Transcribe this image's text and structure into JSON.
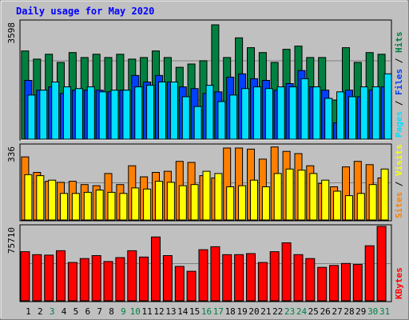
{
  "chart_data": {
    "type": "bar",
    "title": "Daily usage for May 2020",
    "categories": [
      "1",
      "2",
      "3",
      "4",
      "5",
      "6",
      "7",
      "8",
      "9",
      "10",
      "11",
      "12",
      "13",
      "14",
      "15",
      "16",
      "17",
      "18",
      "19",
      "20",
      "21",
      "22",
      "23",
      "24",
      "25",
      "26",
      "27",
      "28",
      "29",
      "30",
      "31"
    ],
    "weekend_days": [
      "3",
      "9",
      "10",
      "16",
      "17",
      "23",
      "24",
      "30",
      "31"
    ],
    "panels": [
      {
        "id": "hits-files-pages",
        "max_label": "3598",
        "ymax": 3598,
        "series": [
          {
            "name": "Hits",
            "color": "#008040",
            "values": [
              2700,
              2450,
              2600,
              2350,
              2650,
              2500,
              2600,
              2500,
              2600,
              2450,
              2500,
              2700,
              2500,
              2200,
              2300,
              2400,
              3500,
              2500,
              3100,
              2800,
              2650,
              2350,
              2750,
              2850,
              2500,
              2500,
              1200,
              2800,
              2350,
              2650,
              2600
            ]
          },
          {
            "name": "Files",
            "color": "#0040ff",
            "values": [
              1800,
              1500,
              1600,
              1400,
              1500,
              1500,
              1500,
              1450,
              1500,
              1950,
              1750,
              1950,
              1750,
              1600,
              1550,
              1400,
              1450,
              1900,
              2000,
              1850,
              1800,
              1500,
              1700,
              2100,
              1600,
              1500,
              500,
              1500,
              1300,
              1500,
              1600
            ]
          },
          {
            "name": "Pages",
            "color": "#00e0ff",
            "values": [
              1350,
              1500,
              1750,
              1600,
              1550,
              1600,
              1450,
              1500,
              1500,
              1600,
              1650,
              1750,
              1750,
              1300,
              1000,
              1650,
              1150,
              1350,
              1550,
              1600,
              1550,
              1600,
              1600,
              1850,
              1600,
              1250,
              1450,
              1300,
              1600,
              1600,
              2000
            ]
          }
        ],
        "legend": [
          {
            "name": "Pages",
            "color": "#00e0ff"
          },
          {
            "name": "Files",
            "color": "#0040ff"
          },
          {
            "name": "Hits",
            "color": "#008040"
          }
        ]
      },
      {
        "id": "visits-sites",
        "max_label": "336",
        "ymax": 336,
        "series": [
          {
            "name": "Visits",
            "color": "#ffff00",
            "values": [
              205,
              200,
              180,
              120,
              120,
              125,
              135,
              125,
              120,
              145,
              140,
              175,
              170,
              155,
              160,
              220,
              210,
              150,
              155,
              180,
              150,
              210,
              230,
              225,
              210,
              180,
              130,
              110,
              120,
              160,
              230
            ]
          },
          {
            "name": "Sites",
            "color": "#ff8000",
            "values": [
              285,
              215,
              175,
              170,
              175,
              160,
              155,
              210,
              160,
              245,
              195,
              215,
              220,
              265,
              260,
              200,
              190,
              325,
              325,
              320,
              275,
              330,
              310,
              300,
              245,
              165,
              150,
              240,
              265,
              250,
              190
            ]
          }
        ],
        "legend": [
          {
            "name": "Sites",
            "color": "#ff8000"
          },
          {
            "name": "Visits",
            "color": "#ffff00"
          }
        ]
      },
      {
        "id": "kbytes",
        "max_label": "75710",
        "ymax": 75710,
        "series": [
          {
            "name": "KBytes",
            "color": "#ff0000",
            "values": [
              50000,
              47000,
              46500,
              51000,
              39000,
              43000,
              46000,
              40000,
              44000,
              51000,
              44500,
              65000,
              46000,
              35000,
              30000,
              52000,
              55000,
              47000,
              47000,
              48000,
              39000,
              50000,
              59000,
              47000,
              43000,
              34000,
              36000,
              38000,
              37000,
              56000,
              75710
            ]
          }
        ],
        "legend": [
          {
            "name": "KBytes",
            "color": "#ff0000"
          }
        ]
      }
    ],
    "axis_label_colors": {
      "weekday": "#000000",
      "weekend": "#008040"
    },
    "legend_separator": " / "
  }
}
